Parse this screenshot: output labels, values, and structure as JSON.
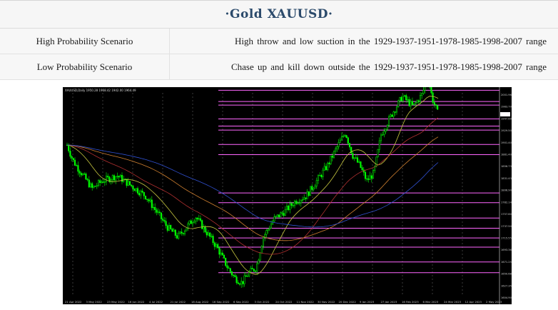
{
  "header": {
    "title": "·Gold XAUUSD·"
  },
  "scenarios": [
    {
      "label": "High Probability Scenario",
      "text": "High throw and low suction in the 1929-1937-1951-1978-1985-1998-2007 range"
    },
    {
      "label": "Low Probability Scenario",
      "text": "Chase up and kill down outside the 1929-1937-1951-1978-1985-1998-2007 range"
    }
  ],
  "chart_data": {
    "type": "candlestick",
    "symbol_header": "XAUUSD,Daily 1950.28 1968.42 1942.00 1964.49",
    "y_tick_labels": [
      "2001.96",
      "1983.70",
      "1947.60",
      "1929.50",
      "1901.40",
      "1881.40",
      "1856.73",
      "1831.43",
      "1806.90",
      "1782.14",
      "1757.60",
      "1737.50",
      "1715.55",
      "1693.36",
      "1671.25",
      "1650.68",
      "1627.35",
      "1604.90"
    ],
    "x_tick_labels": [
      "21 Apr 2022",
      "3 May 2022",
      "23 May 2022",
      "16 Jun 2022",
      "4 Jul 2022",
      "21 Jul 2022",
      "18 Aug 2022",
      "16 Sep 2022",
      "6 Sep 2022",
      "3 Oct 2022",
      "24 Oct 2022",
      "11 Nov 2022",
      "30 Nov 2022",
      "20 Dec 2022",
      "9 Jan 2023",
      "27 Jan 2023",
      "16 Feb 2023",
      "6 Mar 2023",
      "24 Mar 2023",
      "12 Apr 2023",
      "2 May 2023"
    ],
    "grid": true,
    "price_range": [
      1604.9,
      2001.96
    ],
    "horizontal_levels": [
      2007,
      1985,
      1978,
      1951,
      1937,
      1929,
      1901,
      1881,
      1806,
      1787,
      1757,
      1737,
      1718,
      1700,
      1671,
      1650
    ],
    "colors": {
      "bull": "#00ff00",
      "bear": "#00c800",
      "levels": "#ff66ff",
      "ma_fast": "#c8c840",
      "ma_mid": "#b03030",
      "ma_slow": "#d08030",
      "ma_blue": "#3050d0"
    }
  }
}
